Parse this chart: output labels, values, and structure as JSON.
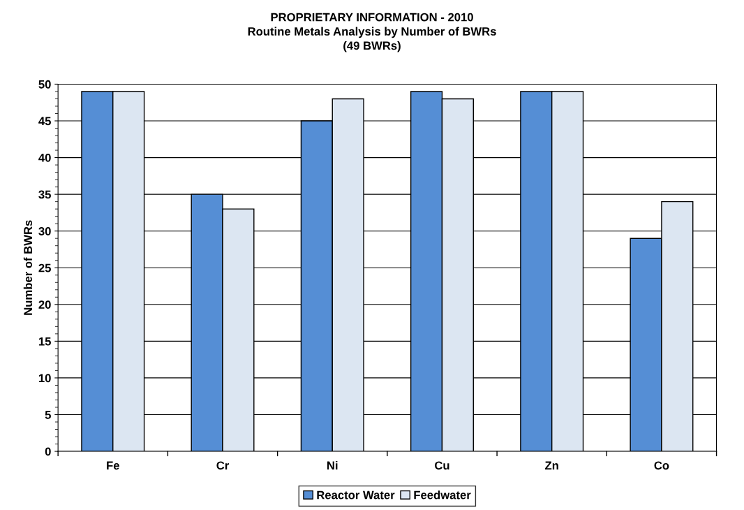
{
  "chart_data": {
    "type": "bar",
    "title": "PROPRIETARY INFORMATION - 2010\nRoutine Metals Analysis by Number of BWRs\n(49 BWRs)",
    "ylabel": "Number of BWRs",
    "categories": [
      "Fe",
      "Cr",
      "Ni",
      "Cu",
      "Zn",
      "Co"
    ],
    "series": [
      {
        "name": "Reactor Water",
        "color": "#558ed5",
        "values": [
          49,
          35,
          45,
          49,
          49,
          29
        ]
      },
      {
        "name": "Feedwater",
        "color": "#dce6f2",
        "values": [
          49,
          33,
          48,
          48,
          49,
          34
        ]
      }
    ],
    "ylim": [
      0,
      50
    ],
    "yticks": [
      0,
      5,
      10,
      15,
      20,
      25,
      30,
      35,
      40,
      45,
      50
    ],
    "grid": "y",
    "legend": "bottom"
  }
}
